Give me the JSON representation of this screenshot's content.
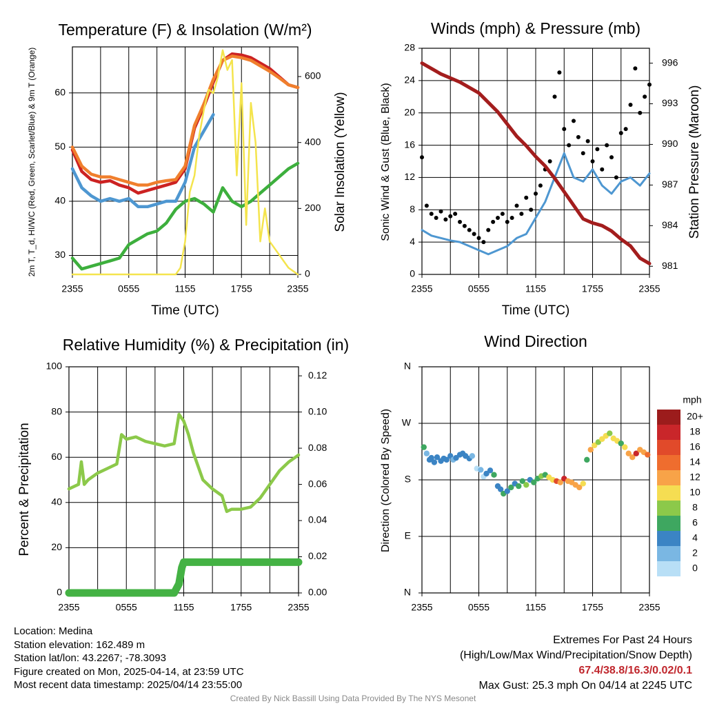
{
  "chart_data": [
    {
      "type": "line",
      "title": "Temperature (F) & Insolation (W/m²)",
      "xlabel": "Time (UTC)",
      "ylabel": "2m T, T_d, HI/WC (Red, Green, Scarlet/Blue) & 9m T (Orange)",
      "y2label": "Solar Insolation (Yellow)",
      "x_ticks": [
        "2355",
        "0555",
        "1155",
        "1755",
        "2355"
      ],
      "y_ticks": [
        "30",
        "40",
        "50",
        "60"
      ],
      "y2_ticks": [
        "0",
        "200",
        "400",
        "600"
      ],
      "ylim": [
        26.5,
        68.5
      ],
      "y2lim": [
        0,
        690
      ],
      "x_hours": [
        0,
        24
      ],
      "series": [
        {
          "name": "Red",
          "axis": "left",
          "color": "#cc2222",
          "x": [
            0,
            1,
            2,
            3,
            4,
            5,
            6,
            7,
            8,
            9,
            10,
            11,
            12,
            13,
            14,
            15,
            16,
            17,
            18,
            19,
            20,
            21,
            22,
            23,
            24
          ],
          "y": [
            49.5,
            45.5,
            44.0,
            43.5,
            43.8,
            43.0,
            42.5,
            41.5,
            42.0,
            42.5,
            43.0,
            43.5,
            46.0,
            53.5,
            57.5,
            62.0,
            66.0,
            67.2,
            67.0,
            66.5,
            65.5,
            64.5,
            63.0,
            61.5,
            61.0
          ]
        },
        {
          "name": "Orange",
          "axis": "left",
          "color": "#f07f2d",
          "x": [
            0,
            1,
            2,
            3,
            4,
            5,
            6,
            7,
            8,
            9,
            10,
            11,
            12,
            13,
            14,
            15,
            16,
            17,
            18,
            19,
            20,
            21,
            22,
            23,
            24
          ],
          "y": [
            50.0,
            46.5,
            45.0,
            44.5,
            44.5,
            44.0,
            43.5,
            43.0,
            43.0,
            43.5,
            43.8,
            44.0,
            46.5,
            54.0,
            58.0,
            62.5,
            66.0,
            66.8,
            66.5,
            66.0,
            65.0,
            64.0,
            62.8,
            61.5,
            61.0
          ]
        },
        {
          "name": "Blue",
          "axis": "left",
          "color": "#4e97d1",
          "x": [
            0,
            1,
            2,
            3,
            4,
            5,
            6,
            7,
            8,
            9,
            10,
            11,
            12,
            13,
            14,
            15
          ],
          "y": [
            46.0,
            42.5,
            41.0,
            40.0,
            40.5,
            40.0,
            40.5,
            39.0,
            39.0,
            39.5,
            40.0,
            40.0,
            43.5,
            50.0,
            53.0,
            56.0
          ]
        },
        {
          "name": "Green",
          "axis": "left",
          "color": "#3daf3d",
          "x": [
            0,
            1,
            2,
            3,
            4,
            5,
            6,
            7,
            8,
            9,
            10,
            11,
            12,
            13,
            14,
            15,
            16,
            17,
            18,
            19,
            20,
            21,
            22,
            23,
            24
          ],
          "y": [
            29.5,
            27.5,
            28.0,
            28.5,
            29.0,
            29.5,
            32.0,
            33.0,
            34.0,
            34.5,
            36.0,
            38.5,
            40.0,
            40.5,
            39.5,
            38.0,
            42.5,
            40.0,
            39.0,
            40.0,
            41.5,
            43.0,
            44.5,
            46.0,
            47.0
          ]
        },
        {
          "name": "Yellow",
          "axis": "right",
          "color": "#f4e44d",
          "x": [
            0,
            1,
            2,
            3,
            4,
            5,
            6,
            7,
            8,
            9,
            10,
            11,
            11.5,
            12,
            12.5,
            13,
            13.5,
            14,
            14.5,
            15,
            15.5,
            16,
            16.5,
            17,
            17.5,
            18,
            18.5,
            19,
            19.5,
            20,
            20.5,
            21,
            21.5,
            22,
            22.5,
            23,
            23.5,
            24
          ],
          "y": [
            0,
            0,
            0,
            0,
            0,
            0,
            0,
            0,
            0,
            0,
            0,
            0,
            20,
            100,
            250,
            300,
            420,
            500,
            560,
            550,
            600,
            680,
            620,
            650,
            300,
            580,
            150,
            520,
            400,
            100,
            200,
            100,
            80,
            60,
            40,
            20,
            10,
            0
          ]
        }
      ]
    },
    {
      "type": "scatter",
      "title": "Winds (mph) & Pressure (mb)",
      "xlabel": "Time (UTC)",
      "ylabel": "Sonic Wind & Gust (Blue, Black)",
      "y2label": "Station Pressure (Maroon)",
      "x_ticks": [
        "2355",
        "0555",
        "1155",
        "1755",
        "2355"
      ],
      "y_ticks": [
        "0",
        "4",
        "8",
        "12",
        "16",
        "20",
        "24",
        "28"
      ],
      "y2_ticks": [
        "981",
        "984",
        "987",
        "990",
        "993",
        "996"
      ],
      "ylim": [
        0,
        28
      ],
      "y2lim": [
        980.4,
        997.1
      ],
      "series": [
        {
          "name": "Blue",
          "kind": "line",
          "axis": "left",
          "color": "#4e97d1",
          "x": [
            0,
            1,
            2,
            3,
            4,
            5,
            6,
            7,
            8,
            9,
            10,
            11,
            12,
            13,
            14,
            15,
            16,
            17,
            18,
            19,
            20,
            21,
            22,
            23,
            24
          ],
          "y": [
            5.5,
            4.8,
            4.5,
            4.2,
            4.0,
            3.5,
            3.0,
            2.5,
            3.0,
            3.5,
            4.5,
            5.0,
            7.0,
            9.0,
            12.0,
            15.0,
            12.0,
            11.5,
            13.0,
            11.0,
            10.0,
            11.5,
            12.0,
            11.0,
            12.5
          ]
        },
        {
          "name": "Black",
          "kind": "points",
          "axis": "left",
          "color": "#000000",
          "x": [
            0,
            0.5,
            1,
            1.5,
            2,
            2.5,
            3,
            3.5,
            4,
            4.5,
            5,
            5.5,
            6,
            6.5,
            7,
            7.5,
            8,
            8.5,
            9,
            9.5,
            10,
            10.5,
            11,
            11.5,
            12,
            12.5,
            13,
            13.5,
            14,
            14.5,
            15,
            15.5,
            16,
            16.5,
            17,
            17.5,
            18,
            18.5,
            19,
            19.5,
            20,
            20.5,
            21,
            21.5,
            22,
            22.5,
            23,
            23.5,
            24
          ],
          "y": [
            14.5,
            8.5,
            7.5,
            7.0,
            7.8,
            6.8,
            7.2,
            7.5,
            6.5,
            6.0,
            5.5,
            5.0,
            4.5,
            4.0,
            5.5,
            6.5,
            7.0,
            7.5,
            6.5,
            7.0,
            8.5,
            7.5,
            9.5,
            8.0,
            10.0,
            11.0,
            13.0,
            14.0,
            22.0,
            25.0,
            18.0,
            16.0,
            19.0,
            17.0,
            15.0,
            16.5,
            14.0,
            15.5,
            13.0,
            16.0,
            14.5,
            12.0,
            17.5,
            18.0,
            21.0,
            25.5,
            20.0,
            22.0,
            23.5
          ]
        },
        {
          "name": "Maroon",
          "kind": "line",
          "axis": "right",
          "color": "#a31d1d",
          "x": [
            0,
            2,
            4,
            6,
            8,
            10,
            11,
            12,
            13,
            14,
            15,
            16,
            17,
            18,
            19,
            20,
            21,
            22,
            23,
            24
          ],
          "y": [
            996.0,
            995.2,
            994.6,
            993.8,
            992.4,
            990.6,
            989.9,
            989.1,
            988.4,
            987.5,
            986.5,
            985.5,
            984.5,
            984.2,
            984.0,
            983.6,
            983.0,
            982.5,
            981.6,
            981.2
          ]
        }
      ]
    },
    {
      "type": "line",
      "title": "Relative Humidity (%) & Precipitation (in)",
      "xlabel": "",
      "ylabel": "Percent & Precipitation",
      "x_ticks": [
        "2355",
        "0555",
        "1155",
        "1755",
        "2355"
      ],
      "y_ticks": [
        "0",
        "20",
        "40",
        "60",
        "80",
        "100"
      ],
      "y2_ticks": [
        "0.00",
        "0.02",
        "0.04",
        "0.06",
        "0.08",
        "0.10",
        "0.12"
      ],
      "ylim": [
        0,
        100
      ],
      "y2lim": [
        0,
        0.125
      ],
      "series": [
        {
          "name": "RH",
          "axis": "left",
          "color": "#8cc94a",
          "x": [
            0,
            1,
            1.3,
            1.6,
            2,
            3,
            4,
            5,
            5.5,
            6,
            7,
            8,
            9,
            10,
            11,
            11.5,
            12,
            12.5,
            13,
            14,
            15,
            16,
            16.5,
            17,
            18,
            19,
            20,
            21,
            22,
            23,
            24
          ],
          "y": [
            46,
            48,
            58,
            48,
            50,
            53,
            55,
            57,
            70,
            68,
            69,
            67,
            66,
            65,
            66,
            79,
            76,
            70,
            62,
            50,
            46,
            43,
            36,
            37,
            37,
            38,
            42,
            48,
            54,
            58,
            61
          ]
        },
        {
          "name": "Precip",
          "axis": "right",
          "color": "#44b244",
          "x": [
            0,
            1,
            2,
            3,
            4,
            5,
            6,
            7,
            8,
            9,
            10,
            11,
            11.5,
            11.8,
            12,
            13,
            14,
            15,
            16,
            17,
            18,
            19,
            20,
            21,
            22,
            23,
            24
          ],
          "y": [
            0,
            0,
            0,
            0,
            0,
            0,
            0,
            0,
            0,
            0,
            0,
            0,
            0.005,
            0.014,
            0.017,
            0.017,
            0.017,
            0.017,
            0.017,
            0.017,
            0.017,
            0.017,
            0.017,
            0.017,
            0.017,
            0.017,
            0.017
          ]
        }
      ]
    },
    {
      "type": "scatter",
      "title": "Wind Direction",
      "xlabel": "",
      "ylabel": "Direction (Colored By Speed)",
      "x_ticks": [
        "2355",
        "0555",
        "1155",
        "1755",
        "2355"
      ],
      "y_ticks": [
        "N",
        "E",
        "S",
        "W",
        "N"
      ],
      "legend": {
        "title": "mph",
        "labels": [
          "20+",
          "18",
          "16",
          "14",
          "12",
          "10",
          "8",
          "6",
          "4",
          "2",
          "0"
        ],
        "colors": [
          "#9c1c1c",
          "#c9262a",
          "#e14a2a",
          "#ef6d2e",
          "#f8a348",
          "#f5dd52",
          "#8cc94a",
          "#3ea760",
          "#3b84c4",
          "#7ab7e3",
          "#b8dff6"
        ]
      },
      "points": [
        [
          0.2,
          232,
          "#3ea760"
        ],
        [
          0.5,
          222,
          "#7ab7e3"
        ],
        [
          0.8,
          212,
          "#3b84c4"
        ],
        [
          1.0,
          215,
          "#3b84c4"
        ],
        [
          1.3,
          208,
          "#3b84c4"
        ],
        [
          1.6,
          216,
          "#3b84c4"
        ],
        [
          2.0,
          210,
          "#3b84c4"
        ],
        [
          2.3,
          214,
          "#3b84c4"
        ],
        [
          2.6,
          212,
          "#3b84c4"
        ],
        [
          3.0,
          218,
          "#3b84c4"
        ],
        [
          3.3,
          212,
          "#7ab7e3"
        ],
        [
          3.6,
          215,
          "#3b84c4"
        ],
        [
          4.0,
          220,
          "#3b84c4"
        ],
        [
          4.3,
          222,
          "#3b84c4"
        ],
        [
          4.6,
          218,
          "#3b84c4"
        ],
        [
          5.0,
          214,
          "#3b84c4"
        ],
        [
          5.3,
          218,
          "#7ab7e3"
        ],
        [
          5.8,
          198,
          "#b8dff6"
        ],
        [
          6.2,
          196,
          "#7ab7e3"
        ],
        [
          6.5,
          185,
          "#b8dff6"
        ],
        [
          6.8,
          190,
          "#3b84c4"
        ],
        [
          7.2,
          195,
          "#3b84c4"
        ],
        [
          7.6,
          188,
          "#3ea760"
        ],
        [
          8.0,
          170,
          "#3b84c4"
        ],
        [
          8.3,
          165,
          "#3b84c4"
        ],
        [
          8.6,
          158,
          "#3ea760"
        ],
        [
          9.0,
          162,
          "#3b84c4"
        ],
        [
          9.4,
          168,
          "#3ea760"
        ],
        [
          9.8,
          174,
          "#3b84c4"
        ],
        [
          10.2,
          170,
          "#3ea760"
        ],
        [
          10.6,
          178,
          "#3ea760"
        ],
        [
          11.0,
          172,
          "#8cc94a"
        ],
        [
          11.4,
          180,
          "#3b84c4"
        ],
        [
          11.8,
          176,
          "#3ea760"
        ],
        [
          12.2,
          182,
          "#3ea760"
        ],
        [
          12.6,
          186,
          "#8cc94a"
        ],
        [
          13.0,
          188,
          "#3ea760"
        ],
        [
          13.4,
          184,
          "#f5dd52"
        ],
        [
          13.8,
          180,
          "#f5dd52"
        ],
        [
          14.2,
          178,
          "#e14a2a"
        ],
        [
          14.6,
          176,
          "#f8a348"
        ],
        [
          15.0,
          182,
          "#c9262a"
        ],
        [
          15.4,
          178,
          "#f8a348"
        ],
        [
          15.8,
          176,
          "#f8a348"
        ],
        [
          16.2,
          172,
          "#f8a348"
        ],
        [
          16.6,
          168,
          "#f8a348"
        ],
        [
          17.0,
          174,
          "#f5dd52"
        ],
        [
          17.4,
          212,
          "#3ea760"
        ],
        [
          17.8,
          228,
          "#f8a348"
        ],
        [
          18.2,
          235,
          "#f5dd52"
        ],
        [
          18.6,
          240,
          "#8cc94a"
        ],
        [
          19.0,
          245,
          "#f5dd52"
        ],
        [
          19.4,
          250,
          "#f5dd52"
        ],
        [
          19.8,
          254,
          "#8cc94a"
        ],
        [
          20.2,
          246,
          "#f5dd52"
        ],
        [
          20.6,
          242,
          "#f5dd52"
        ],
        [
          21.0,
          238,
          "#3ea760"
        ],
        [
          21.4,
          232,
          "#f5dd52"
        ],
        [
          21.8,
          222,
          "#f8a348"
        ],
        [
          22.2,
          216,
          "#f8a348"
        ],
        [
          22.6,
          222,
          "#c9262a"
        ],
        [
          23.0,
          228,
          "#f8a348"
        ],
        [
          23.4,
          224,
          "#f8a348"
        ],
        [
          23.8,
          220,
          "#ef6d2e"
        ]
      ]
    }
  ],
  "footer": {
    "location": "Location: Medina",
    "elevation": "Station elevation: 162.489 m",
    "latlon": "Station lat/lon: 43.2267; -78.3093",
    "created": "Figure created on Mon, 2025-04-14, at 23:59 UTC",
    "recent": "Most recent data timestamp: 2025/04/14 23:55:00",
    "extremes_title": "Extremes For Past 24 Hours",
    "extremes_desc": "(High/Low/Max Wind/Precipitation/Snow Depth)",
    "extremes_values": "67.4/38.8/16.3/0.02/0.1",
    "max_gust": "Max Gust: 25.3 mph On 04/14 at 2245 UTC",
    "credit": "Created By Nick Bassill Using Data Provided By The NYS Mesonet"
  }
}
